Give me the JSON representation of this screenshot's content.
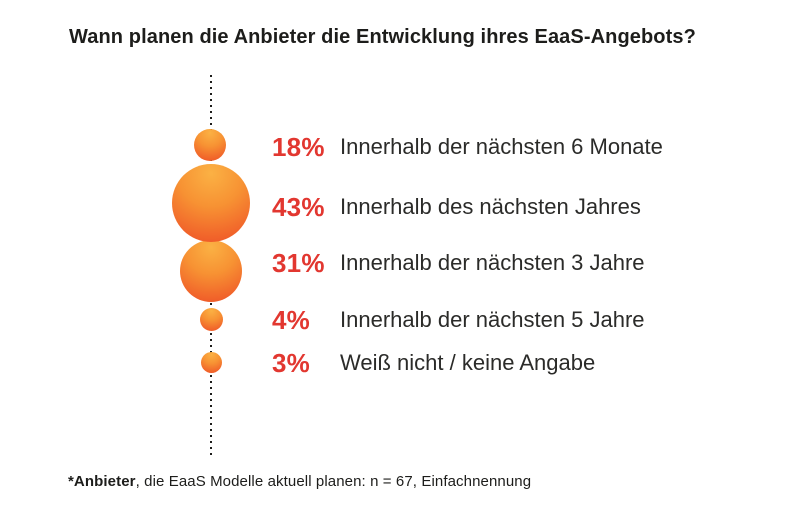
{
  "title": "Wann planen die Anbieter die Entwicklung ihres EaaS-Angebots?",
  "footnote": {
    "bold": "*Anbieter",
    "rest": ", die EaaS Modelle aktuell planen: n = 67, Einfachnennung"
  },
  "colors": {
    "accent_red": "#e23730",
    "bubble_gradient_top": "#fbb144",
    "bubble_gradient_bottom": "#ee4d26",
    "title_text": "#1d1d1b",
    "label_text": "#2b2b29",
    "background": "#ffffff"
  },
  "chart_data": {
    "type": "bubble",
    "title": "Wann planen die Anbieter die Entwicklung ihres EaaS-Angebots?",
    "categories": [
      "Innerhalb der nächsten 6 Monate",
      "Innerhalb des nächsten Jahres",
      "Innerhalb der nächsten 3 Jahre",
      "Innerhalb der nächsten 5 Jahre",
      "Weiß nicht / keine Angabe"
    ],
    "values": [
      18,
      43,
      31,
      4,
      3
    ],
    "unit": "%",
    "layout": "vertical bubble column on dotted axis, value labels left of category labels",
    "annotation": "*Anbieter, die EaaS Modelle aktuell planen: n = 67, Einfachnennung",
    "rows": [
      {
        "percent": "18%",
        "label": "Innerhalb der nächsten 6 Monate",
        "value": 18
      },
      {
        "percent": "43%",
        "label": "Innerhalb des nächsten Jahres",
        "value": 43
      },
      {
        "percent": "31%",
        "label": "Innerhalb der nächsten 3 Jahre",
        "value": 31
      },
      {
        "percent": "4%",
        "label": "Innerhalb der nächsten 5 Jahre",
        "value": 4
      },
      {
        "percent": "3%",
        "label": "Weiß nicht / keine Angabe",
        "value": 3
      }
    ]
  }
}
